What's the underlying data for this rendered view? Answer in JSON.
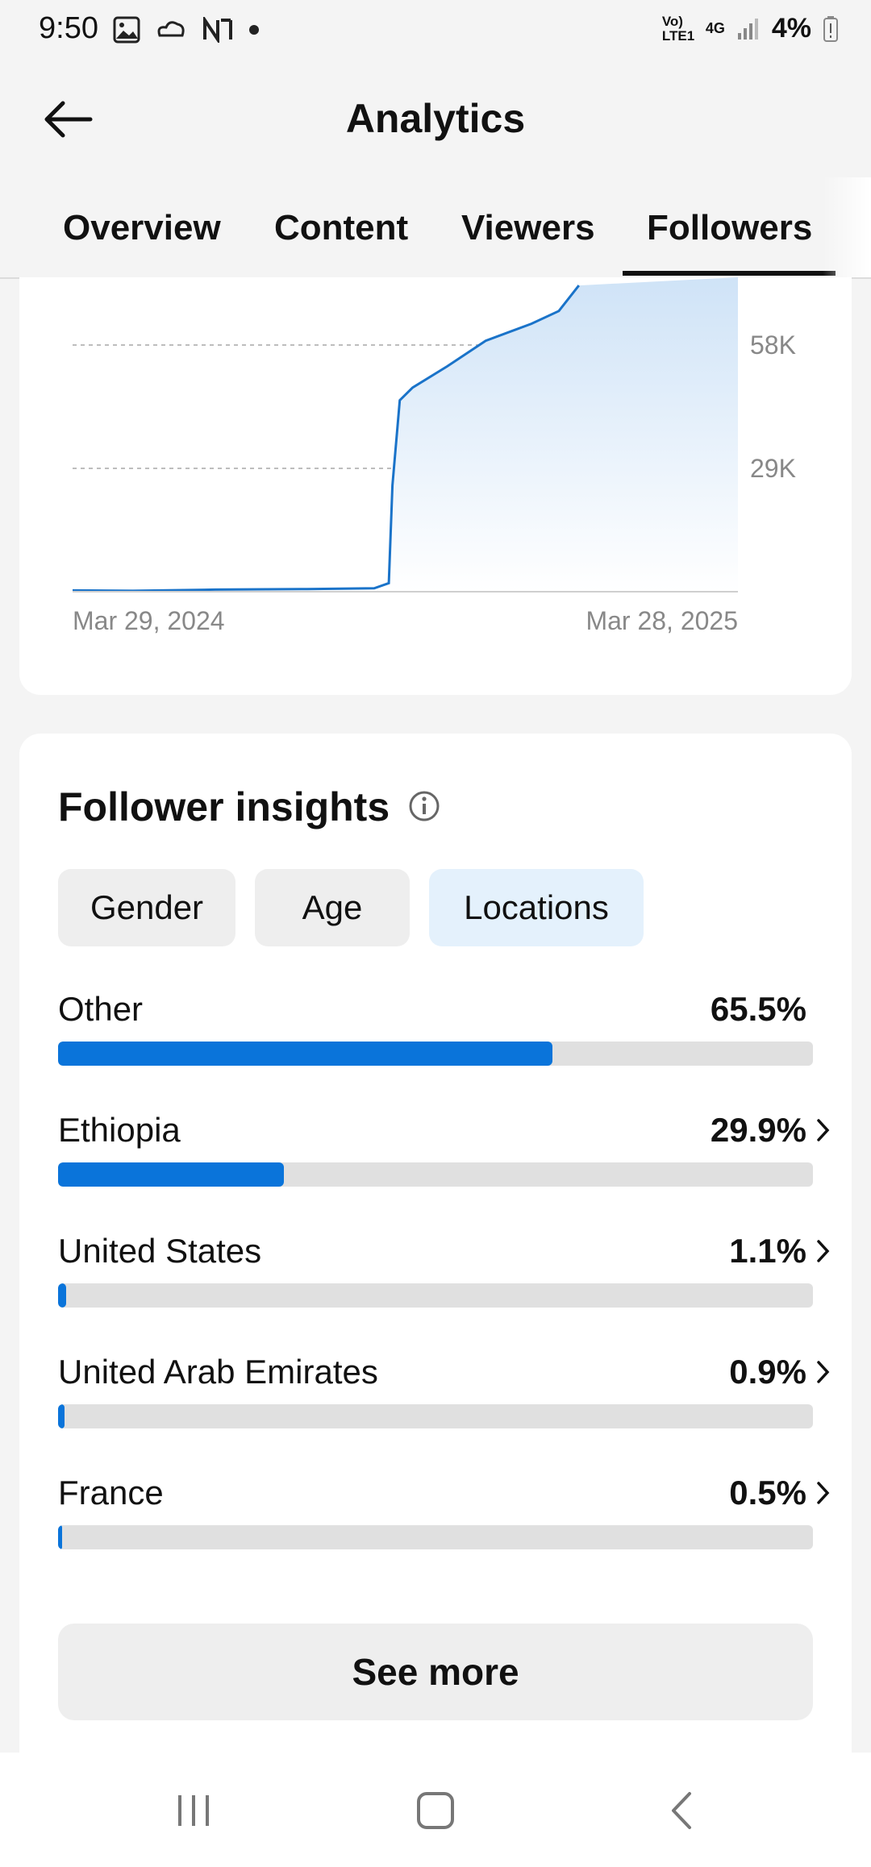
{
  "status_bar": {
    "time": "9:50",
    "network": "Vo) LTE1",
    "network_type": "4G",
    "battery": "4%",
    "left_icons": [
      "gallery-icon",
      "cloud-icon",
      "n-icon",
      "dot-icon"
    ]
  },
  "header": {
    "title": "Analytics",
    "back_icon": "arrow-left-icon"
  },
  "tabs": [
    {
      "label": "Overview"
    },
    {
      "label": "Content"
    },
    {
      "label": "Viewers"
    },
    {
      "label": "Followers",
      "active": true
    }
  ],
  "chart_data": {
    "type": "area",
    "x_start_label": "Mar 29, 2024",
    "x_end_label": "Mar 28, 2025",
    "y_ticks": [
      "58K",
      "29K"
    ],
    "y_tick_values": [
      58000,
      29000
    ],
    "grid": true,
    "color": "#1a73c9",
    "points": [
      {
        "x": "2024-03-29",
        "y": 300
      },
      {
        "x": "2024-05-01",
        "y": 200
      },
      {
        "x": "2024-06-15",
        "y": 500
      },
      {
        "x": "2024-08-01",
        "y": 600
      },
      {
        "x": "2024-09-10",
        "y": 800
      },
      {
        "x": "2024-09-18",
        "y": 2000
      },
      {
        "x": "2024-09-20",
        "y": 25000
      },
      {
        "x": "2024-09-24",
        "y": 45000
      },
      {
        "x": "2024-10-01",
        "y": 48000
      },
      {
        "x": "2024-10-20",
        "y": 53000
      },
      {
        "x": "2024-11-10",
        "y": 59000
      },
      {
        "x": "2024-12-05",
        "y": 63000
      },
      {
        "x": "2024-12-20",
        "y": 66000
      },
      {
        "x": "2024-12-31",
        "y": 72000
      }
    ]
  },
  "insights": {
    "title": "Follower insights",
    "info_icon": "info-circle-icon",
    "chips": [
      {
        "label": "Gender"
      },
      {
        "label": "Age"
      },
      {
        "label": "Locations",
        "active": true
      }
    ],
    "locations": [
      {
        "name": "Other",
        "percent": "65.5%",
        "value": 65.5,
        "chevron": false
      },
      {
        "name": "Ethiopia",
        "percent": "29.9%",
        "value": 29.9,
        "chevron": true
      },
      {
        "name": "United States",
        "percent": "1.1%",
        "value": 1.1,
        "chevron": true
      },
      {
        "name": "United Arab Emirates",
        "percent": "0.9%",
        "value": 0.9,
        "chevron": true
      },
      {
        "name": "France",
        "percent": "0.5%",
        "value": 0.5,
        "chevron": true
      }
    ],
    "see_more": "See more",
    "bar_color": "#0a74da"
  },
  "nav_bar": {
    "icons": [
      "recent-apps-icon",
      "home-icon",
      "back-nav-icon"
    ]
  }
}
